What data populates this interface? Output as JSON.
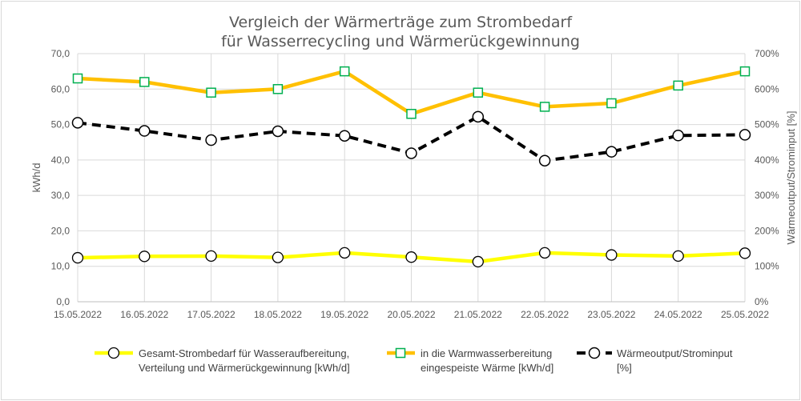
{
  "chart_data": {
    "type": "line",
    "title": "Vergleich der Wärmerträge zum Strombedarf",
    "subtitle": "für Wasserrecycling und Wärmerückgewinnung",
    "ylabel": "kWh/d",
    "y2label": "Wärmeoutput/Strominput [%]",
    "ylim": [
      0,
      70
    ],
    "y2lim": [
      0,
      700
    ],
    "yticks": [
      "0,0",
      "10,0",
      "20,0",
      "30,0",
      "40,0",
      "50,0",
      "60,0",
      "70,0"
    ],
    "y2ticks": [
      "0%",
      "100%",
      "200%",
      "300%",
      "400%",
      "500%",
      "600%",
      "700%"
    ],
    "categories": [
      "15.05.2022",
      "16.05.2022",
      "17.05.2022",
      "18.05.2022",
      "19.05.2022",
      "20.05.2022",
      "21.05.2022",
      "22.05.2022",
      "23.05.2022",
      "24.05.2022",
      "25.05.2022"
    ],
    "grid": true,
    "legend_position": "bottom",
    "series": [
      {
        "name": "Gesamt-Strombedarf für Wasseraufbereitung, Verteilung und Wärmerückgewinnung [kWh/d]",
        "legend_lines": [
          "Gesamt-Strombedarf für Wasseraufbereitung,",
          "Verteilung und Wärmerückgewinnung [kWh/d]"
        ],
        "axis": "left",
        "color": "#ffff00",
        "marker": "circle",
        "style": "solid",
        "values": [
          12.4,
          12.8,
          12.9,
          12.5,
          13.8,
          12.6,
          11.3,
          13.8,
          13.2,
          12.9,
          13.7
        ]
      },
      {
        "name": "in die Warmwasserbereitung eingespeiste Wärme [kWh/d]",
        "legend_lines": [
          "in die Warmwasserbereitung",
          "eingespeiste Wärme [kWh/d]"
        ],
        "axis": "left",
        "color": "#ffc000",
        "marker_color": "#00b050",
        "marker": "square",
        "style": "solid",
        "values": [
          63,
          62,
          59,
          60,
          65,
          53,
          59,
          55,
          56,
          61,
          65
        ]
      },
      {
        "name": "Wärmeoutput/Strominput [%]",
        "legend_lines": [
          "Wärmeoutput/Strominput",
          "[%]"
        ],
        "axis": "right",
        "color": "#000000",
        "marker": "circle",
        "style": "dashed",
        "values": [
          505,
          482,
          456,
          481,
          468,
          419,
          522,
          398,
          423,
          469,
          471
        ]
      }
    ]
  }
}
